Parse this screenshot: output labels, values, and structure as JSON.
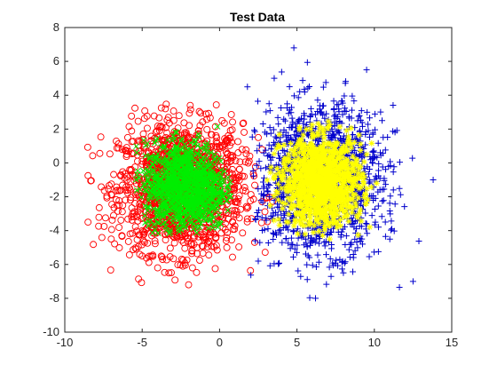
{
  "chart_data": {
    "type": "scatter",
    "title": "Test Data",
    "xlabel": "",
    "ylabel": "",
    "xlim": [
      -10,
      15
    ],
    "ylim": [
      -10,
      8
    ],
    "xticks": [
      "-10",
      "-5",
      "0",
      "5",
      "10",
      "15"
    ],
    "yticks": [
      "-10",
      "-8",
      "-6",
      "-4",
      "-2",
      "0",
      "2",
      "4",
      "6",
      "8"
    ],
    "grid": false,
    "legend": "none",
    "series": [
      {
        "marker": "circle",
        "color": "#ff0000",
        "center": [
          -2.5,
          -1.5
        ],
        "spread": [
          2.0,
          1.9
        ],
        "approx_range_x": [
          -9,
          3.5
        ],
        "approx_range_y": [
          -7.3,
          3.5
        ],
        "values": [
          [
            -2.5,
            -1.5
          ],
          [
            -4.5,
            -2.0
          ],
          [
            -1.0,
            -3.5
          ],
          [
            -6.5,
            -2.5
          ],
          [
            -3.0,
            1.5
          ],
          [
            0.5,
            0.5
          ],
          [
            -5.0,
            -5.5
          ],
          [
            -8.5,
            -3.5
          ],
          [
            -7.0,
            -4.5
          ],
          [
            -2.0,
            -7.2
          ],
          [
            1.0,
            -1.0
          ],
          [
            -3.5,
            3.2
          ],
          [
            2.5,
            1.5
          ],
          [
            -6.0,
            0.5
          ],
          [
            -4.0,
            -6.2
          ]
        ]
      },
      {
        "marker": "x",
        "color": "#00ee00",
        "center": [
          -2.2,
          -1.4
        ],
        "spread": [
          1.3,
          1.3
        ],
        "approx_range_x": [
          -5.5,
          0.8
        ],
        "approx_range_y": [
          -4.2,
          2.3
        ],
        "values": [
          [
            -2.2,
            -1.4
          ],
          [
            -3.0,
            -0.5
          ],
          [
            -1.5,
            -2.5
          ],
          [
            -3.8,
            -2.0
          ],
          [
            -0.8,
            -0.8
          ],
          [
            -2.5,
            0.8
          ],
          [
            -1.8,
            -3.5
          ]
        ]
      },
      {
        "marker": "plus",
        "color": "#0000cc",
        "center": [
          6.5,
          -1.0
        ],
        "spread": [
          2.0,
          2.1
        ],
        "approx_range_x": [
          2.0,
          13.8
        ],
        "approx_range_y": [
          -8.2,
          6.8
        ],
        "values": [
          [
            6.5,
            -1.0
          ],
          [
            4.8,
            6.8
          ],
          [
            9.5,
            5.5
          ],
          [
            13.8,
            -1.0
          ],
          [
            6.2,
            -8.0
          ],
          [
            2.5,
            -5.8
          ],
          [
            11.0,
            -4.5
          ],
          [
            12.5,
            -7.0
          ],
          [
            3.2,
            3.5
          ],
          [
            8.0,
            -6.5
          ],
          [
            10.5,
            2.5
          ],
          [
            1.8,
            4.5
          ]
        ]
      },
      {
        "marker": "star",
        "color": "#ffff00",
        "center": [
          6.6,
          -1.1
        ],
        "spread": [
          1.3,
          1.3
        ],
        "approx_range_x": [
          3.0,
          10.3
        ],
        "approx_range_y": [
          -4.5,
          2.5
        ],
        "values": [
          [
            6.6,
            -1.1
          ],
          [
            5.0,
            -0.2
          ],
          [
            8.0,
            -2.2
          ],
          [
            6.0,
            1.5
          ],
          [
            7.5,
            -3.5
          ],
          [
            4.0,
            -1.5
          ],
          [
            9.5,
            0.5
          ]
        ]
      }
    ]
  }
}
